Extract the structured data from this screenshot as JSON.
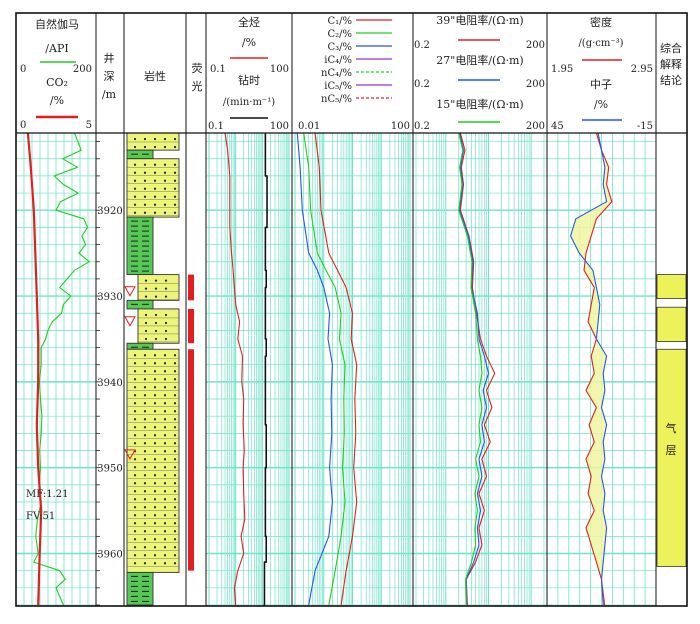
{
  "tracks": {
    "gr": {
      "title": "自然伽马",
      "unit": "/API",
      "min": "0",
      "max": "200",
      "co2_title": "CO₂",
      "co2_unit": "/%",
      "co2_min": "0",
      "co2_max": "5"
    },
    "depth": {
      "title_lines": [
        "井",
        "深",
        "/m"
      ]
    },
    "lith": {
      "title": "岩性"
    },
    "fluor": {
      "title_lines": [
        "荧",
        "光"
      ]
    },
    "tg": {
      "title": "全烃",
      "unit": "/%",
      "min": "0.1",
      "max": "100",
      "rop_title": "钻时",
      "rop_unit": "/(min·m⁻¹)",
      "rop_min": "0.1",
      "rop_max": "100"
    },
    "gas": {
      "legend": [
        "C₁/%",
        "C₂/%",
        "C₃/%",
        "iC₄/%",
        "nC₄/%",
        "iC₅/%",
        "nC₅/%"
      ],
      "min": "0.01",
      "max": "100"
    },
    "res": {
      "items": [
        {
          "title": "39\"电阻率/(Ω·m)",
          "min": "0.2",
          "max": "200"
        },
        {
          "title": "27\"电阻率/(Ω·m)",
          "min": "0.2",
          "max": "200"
        },
        {
          "title": "15\"电阻率/(Ω·m)",
          "min": "0.2",
          "max": "200"
        }
      ]
    },
    "den": {
      "title": "密度",
      "unit": "/(g·cm⁻³)",
      "min": "1.95",
      "max": "2.95",
      "cnl_title": "中子",
      "cnl_unit": "/%",
      "cnl_min": "45",
      "cnl_max": "-15"
    },
    "interp": {
      "title_lines": [
        "综合",
        "解释",
        "结论"
      ],
      "result_label_lines": [
        "气",
        "层"
      ]
    }
  },
  "depth_ticks": [
    "3920",
    "3930",
    "3940",
    "3950",
    "3960"
  ],
  "annotations": {
    "mf": "MF:1.21",
    "fv": "FV:51"
  },
  "colors": {
    "green": "#22cc22",
    "red": "#e02020",
    "blue": "#2255ee",
    "purple": "#9933cc",
    "lithYellow": "#ecf57a",
    "lithGreen": "#55c855",
    "grid": "#6fe3c8",
    "fill": "#f0f5a0"
  },
  "chart_data": {
    "type": "line",
    "depth_range_m": [
      3911,
      3966
    ],
    "lithology": [
      {
        "top": 3911,
        "bottom": 3913,
        "rock": "sandstone"
      },
      {
        "top": 3913,
        "bottom": 3914,
        "rock": "mudstone"
      },
      {
        "top": 3914,
        "bottom": 3920.8,
        "rock": "sandstone"
      },
      {
        "top": 3920.8,
        "bottom": 3927.5,
        "rock": "mudstone"
      },
      {
        "top": 3927.5,
        "bottom": 3930.5,
        "rock": "sandstone"
      },
      {
        "top": 3930.5,
        "bottom": 3931.5,
        "rock": "mudstone"
      },
      {
        "top": 3931.5,
        "bottom": 3935.5,
        "rock": "sandstone"
      },
      {
        "top": 3935.5,
        "bottom": 3936.2,
        "rock": "mudstone"
      },
      {
        "top": 3936.2,
        "bottom": 3962.2,
        "rock": "sandstone"
      },
      {
        "top": 3962.2,
        "bottom": 3966,
        "rock": "mudstone"
      }
    ],
    "fluorescence_intervals": [
      [
        3927.5,
        3930.5
      ],
      [
        3931.5,
        3935.5
      ],
      [
        3936.2,
        3962
      ]
    ],
    "fluorescence_markers": [
      3929.5,
      3933.0,
      3948.5
    ],
    "interpretation": [
      {
        "top": 3927.5,
        "bottom": 3930.3,
        "result": "gas"
      },
      {
        "top": 3931.3,
        "bottom": 3935.3,
        "result": "gas"
      },
      {
        "top": 3936.2,
        "bottom": 3961.5,
        "result": "gas"
      }
    ],
    "series": [
      {
        "name": "自然伽马",
        "track": "gr",
        "scale": [
          0,
          200
        ],
        "depth": [
          3911,
          3913,
          3914,
          3915,
          3916,
          3917,
          3918,
          3919,
          3920,
          3921,
          3922,
          3923,
          3924,
          3925,
          3926,
          3927,
          3928,
          3929,
          3930,
          3931,
          3932,
          3933,
          3934,
          3935,
          3936,
          3938,
          3940,
          3942,
          3944,
          3946,
          3948,
          3950,
          3952,
          3954,
          3956,
          3958,
          3960,
          3961,
          3962,
          3963,
          3964,
          3966
        ],
        "values": [
          150,
          168,
          118,
          158,
          95,
          120,
          160,
          112,
          100,
          175,
          185,
          170,
          180,
          162,
          190,
          150,
          130,
          110,
          140,
          120,
          115,
          90,
          78,
          72,
          60,
          60,
          55,
          58,
          62,
          60,
          56,
          58,
          55,
          60,
          50,
          45,
          52,
          40,
          110,
          125,
          100,
          120
        ]
      },
      {
        "name": "CO₂",
        "track": "gr",
        "scale": [
          0,
          5
        ],
        "depth": [
          3911,
          3915,
          3920,
          3925,
          3930,
          3935,
          3940,
          3945,
          3950,
          3955,
          3960,
          3966
        ],
        "values": [
          0.6,
          0.8,
          1.0,
          1.1,
          1.2,
          1.3,
          1.3,
          1.2,
          1.3,
          1.5,
          1.4,
          1.3
        ]
      },
      {
        "name": "全烃",
        "track": "tg",
        "log": true,
        "scale": [
          0.1,
          100
        ],
        "depth": [
          3911,
          3913,
          3916,
          3919,
          3922,
          3925,
          3927,
          3929,
          3931,
          3933,
          3935,
          3937,
          3940,
          3942,
          3945,
          3948,
          3950,
          3953,
          3956,
          3958,
          3960,
          3962,
          3964,
          3966
        ],
        "values": [
          0.4,
          0.5,
          0.6,
          0.6,
          0.6,
          0.7,
          0.8,
          0.9,
          1.0,
          1.4,
          1.2,
          1.8,
          1.7,
          2.0,
          1.9,
          2.1,
          1.9,
          2.0,
          2.2,
          1.6,
          2.0,
          1.2,
          0.9,
          1.0
        ]
      },
      {
        "name": "钻时",
        "track": "tg",
        "log": true,
        "scale": [
          0.1,
          100
        ],
        "depth": [
          3911,
          3914,
          3916,
          3920,
          3922,
          3927,
          3929,
          3935,
          3937,
          3945,
          3950,
          3958,
          3961,
          3966
        ],
        "values": [
          13,
          13,
          15,
          15,
          13,
          14,
          13,
          14,
          13,
          14,
          13,
          14,
          12,
          11
        ]
      },
      {
        "name": "C₁/%",
        "track": "gas",
        "log": true,
        "scale": [
          0.01,
          100
        ],
        "depth": [
          3911,
          3915,
          3920,
          3925,
          3927,
          3929,
          3932,
          3935,
          3938,
          3942,
          3946,
          3950,
          3954,
          3958,
          3962,
          3966
        ],
        "values": [
          0.05,
          0.07,
          0.08,
          0.15,
          0.3,
          0.6,
          1.0,
          0.9,
          1.4,
          1.2,
          1.3,
          1.1,
          1.4,
          1.0,
          0.6,
          0.4
        ]
      },
      {
        "name": "C₂/%",
        "track": "gas",
        "log": true,
        "scale": [
          0.01,
          100
        ],
        "depth": [
          3911,
          3915,
          3920,
          3925,
          3927,
          3929,
          3932,
          3935,
          3938,
          3942,
          3946,
          3950,
          3954,
          3958,
          3962,
          3966
        ],
        "values": [
          0.02,
          0.03,
          0.035,
          0.06,
          0.12,
          0.25,
          0.4,
          0.35,
          0.55,
          0.5,
          0.52,
          0.45,
          0.55,
          0.4,
          0.25,
          0.15
        ]
      },
      {
        "name": "C₃/%",
        "track": "gas",
        "log": true,
        "scale": [
          0.01,
          100
        ],
        "depth": [
          3911,
          3915,
          3920,
          3925,
          3927,
          3929,
          3932,
          3935,
          3938,
          3942,
          3946,
          3950,
          3954,
          3958,
          3962,
          3966
        ],
        "values": [
          0.012,
          0.015,
          0.018,
          0.03,
          0.06,
          0.1,
          0.16,
          0.14,
          0.2,
          0.18,
          0.19,
          0.16,
          0.2,
          0.15,
          0.05,
          0.03
        ]
      },
      {
        "name": "39\"电阻率",
        "track": "res",
        "log": true,
        "scale": [
          0.2,
          200
        ],
        "depth": [
          3911,
          3913,
          3915,
          3917,
          3920,
          3923,
          3926,
          3929,
          3932,
          3935,
          3937,
          3939,
          3941,
          3943,
          3945,
          3947,
          3949,
          3951,
          3953,
          3955,
          3957,
          3959,
          3961,
          3963,
          3966
        ],
        "values": [
          2.2,
          2.8,
          2.3,
          2.6,
          2.2,
          3.5,
          4.5,
          4.2,
          5.2,
          6.5,
          9,
          14,
          9,
          12,
          8,
          11,
          7,
          9,
          6,
          8,
          6,
          7,
          5,
          3,
          3.2
        ]
      },
      {
        "name": "27\"电阻率",
        "track": "res",
        "log": true,
        "scale": [
          0.2,
          200
        ],
        "depth": [
          3911,
          3913,
          3915,
          3917,
          3920,
          3923,
          3926,
          3929,
          3932,
          3935,
          3937,
          3939,
          3941,
          3943,
          3945,
          3947,
          3949,
          3951,
          3953,
          3955,
          3957,
          3959,
          3961,
          3963,
          3966
        ],
        "values": [
          2.1,
          2.6,
          2.2,
          2.5,
          2.1,
          3.4,
          4.3,
          4.0,
          5.5,
          6.0,
          8,
          10,
          7.5,
          9,
          7,
          8,
          6,
          7,
          5.5,
          6.5,
          5.5,
          6,
          4.5,
          3,
          3.1
        ]
      },
      {
        "name": "15\"电阻率",
        "track": "res",
        "log": true,
        "scale": [
          0.2,
          200
        ],
        "depth": [
          3911,
          3913,
          3915,
          3917,
          3920,
          3923,
          3926,
          3929,
          3932,
          3935,
          3937,
          3939,
          3941,
          3943,
          3945,
          3947,
          3949,
          3951,
          3953,
          3955,
          3957,
          3959,
          3961,
          3963,
          3966
        ],
        "values": [
          2.0,
          2.5,
          2.1,
          2.4,
          2.0,
          3.2,
          4.1,
          3.9,
          5.0,
          5.5,
          6.5,
          7,
          6,
          7,
          6,
          6.5,
          5,
          6,
          4.8,
          5.5,
          4.8,
          5,
          4,
          2.9,
          3.0
        ]
      },
      {
        "name": "密度",
        "track": "den",
        "scale": [
          1.95,
          2.95
        ],
        "depth": [
          3911,
          3913,
          3915,
          3917,
          3919,
          3921,
          3923,
          3925,
          3927,
          3929,
          3931,
          3933,
          3935,
          3937,
          3939,
          3941,
          3943,
          3945,
          3947,
          3949,
          3951,
          3953,
          3955,
          3957,
          3959,
          3961,
          3963,
          3966
        ],
        "values": [
          2.4,
          2.45,
          2.52,
          2.5,
          2.55,
          2.4,
          2.35,
          2.3,
          2.28,
          2.38,
          2.35,
          2.32,
          2.4,
          2.35,
          2.38,
          2.3,
          2.4,
          2.33,
          2.38,
          2.3,
          2.35,
          2.32,
          2.38,
          2.3,
          2.35,
          2.4,
          2.45,
          2.48
        ]
      },
      {
        "name": "中子",
        "track": "den",
        "scale": [
          45,
          -15
        ],
        "depth": [
          3911,
          3913,
          3915,
          3917,
          3919,
          3921,
          3923,
          3925,
          3927,
          3929,
          3931,
          3933,
          3935,
          3937,
          3939,
          3941,
          3943,
          3945,
          3947,
          3949,
          3951,
          3953,
          3955,
          3957,
          3959,
          3961,
          3963,
          3966
        ],
        "values": [
          17,
          15,
          13,
          14,
          12,
          30,
          33,
          28,
          20,
          18,
          16,
          17,
          18,
          12,
          14,
          13,
          15,
          12,
          14,
          13,
          15,
          13,
          14,
          12,
          13,
          14,
          15,
          14
        ]
      }
    ]
  }
}
